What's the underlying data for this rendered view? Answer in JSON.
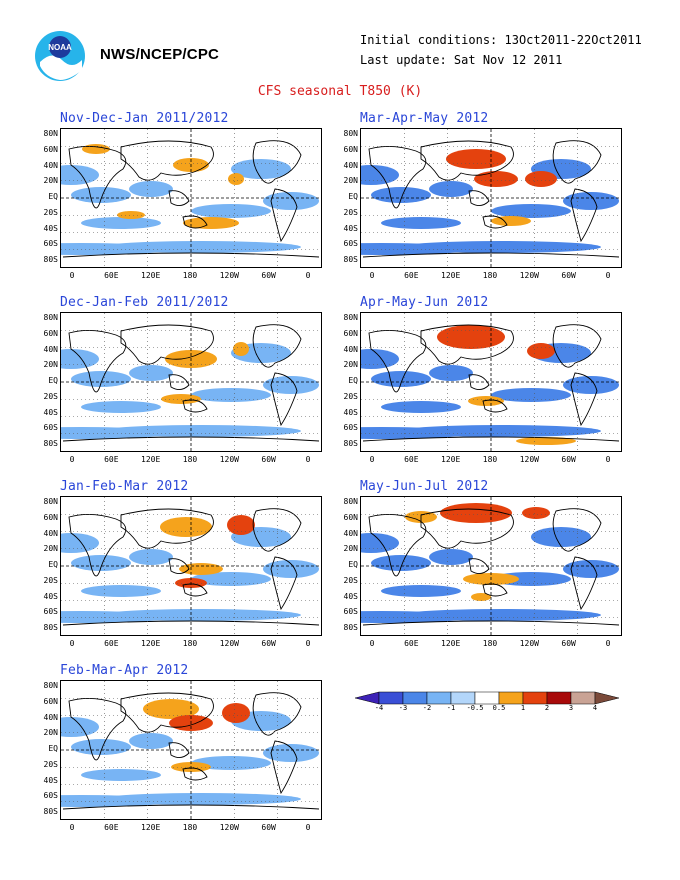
{
  "header": {
    "agency": "NWS/NCEP/CPC",
    "initial_conditions": "Initial conditions: 13Oct2011-22Oct2011",
    "last_update": "Last update: Sat Nov 12 2011",
    "title": "CFS seasonal T850 (K)"
  },
  "logo": {
    "name": "noaa-logo",
    "text": "NOAA"
  },
  "axes": {
    "lat_labels": [
      "80N",
      "60N",
      "40N",
      "20N",
      "EQ",
      "20S",
      "40S",
      "60S",
      "80S"
    ],
    "lon_labels": [
      "0",
      "60E",
      "120E",
      "180",
      "120W",
      "60W",
      "0"
    ]
  },
  "panels": [
    {
      "id": "ndj",
      "title": "Nov-Dec-Jan 2011/2012"
    },
    {
      "id": "mam",
      "title": "Mar-Apr-May 2012"
    },
    {
      "id": "djf",
      "title": "Dec-Jan-Feb 2011/2012"
    },
    {
      "id": "amj",
      "title": "Apr-May-Jun 2012"
    },
    {
      "id": "jfm",
      "title": "Jan-Feb-Mar 2012"
    },
    {
      "id": "mjj",
      "title": "May-Jun-Jul 2012"
    },
    {
      "id": "fma",
      "title": "Feb-Mar-Apr 2012"
    }
  ],
  "colorbar": {
    "labels": [
      "-4",
      "-3",
      "-2",
      "-1",
      "-0.5",
      "0.5",
      "1",
      "2",
      "3",
      "4"
    ],
    "colors": [
      "#3d22b6",
      "#3a4fd6",
      "#4b86e8",
      "#78b4f4",
      "#b3d6fa",
      "#ffffff",
      "#f5a31c",
      "#e4420e",
      "#a80a0a",
      "#c9a395",
      "#7b4a3a"
    ]
  }
}
